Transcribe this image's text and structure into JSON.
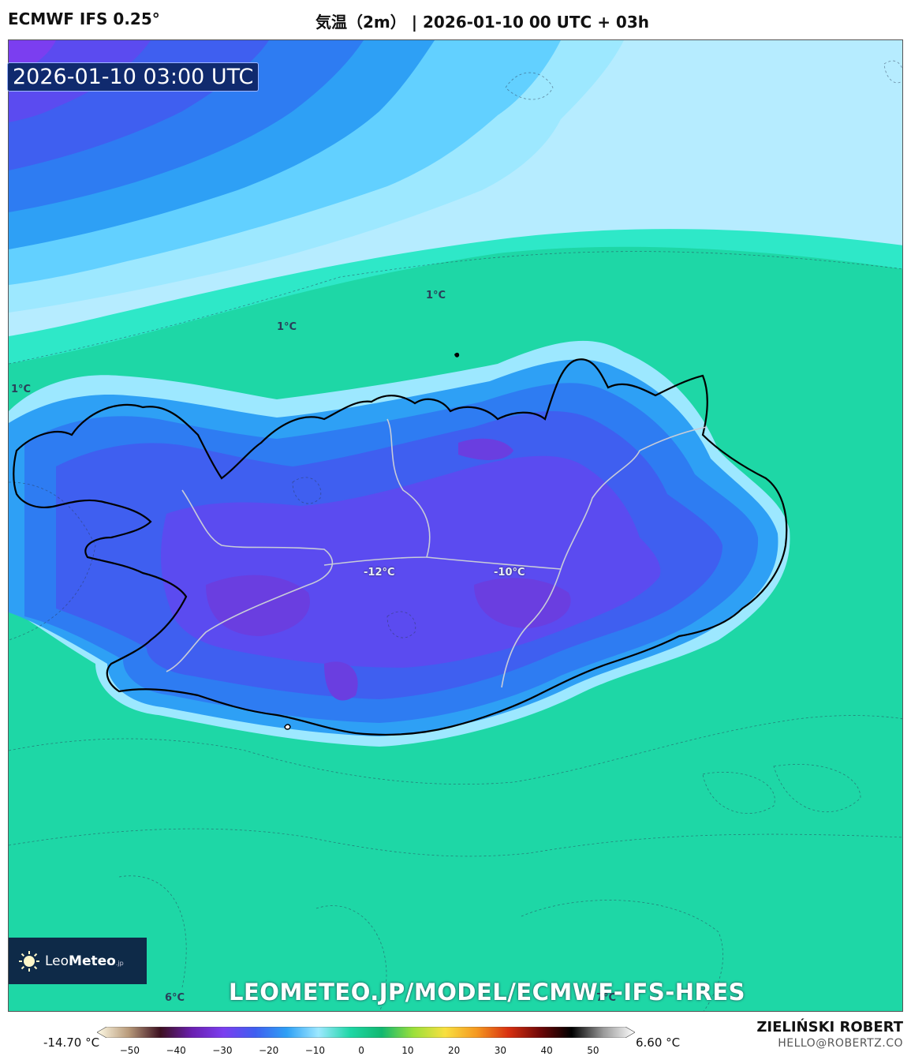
{
  "header": {
    "model": "ECMWF IFS 0.25°",
    "title": "気温（2m） | 2026-01-10 00 UTC + 03h"
  },
  "map": {
    "timestamp": "2026-01-10 03:00 UTC",
    "contour_labels": [
      "1°C",
      "1°C",
      "1°C",
      "6°C",
      "7°C"
    ],
    "region_labels": [
      "-12°C",
      "-10°C"
    ]
  },
  "logo": {
    "name_light": "Leo",
    "name_bold": "Meteo",
    "suffix": ".jp"
  },
  "watermark": "LEOMETEO.JP/MODEL/ECMWF-IFS-HRES",
  "colorbar": {
    "min_label": "-14.70 °C",
    "max_label": "6.60 °C",
    "ticks": [
      "−50",
      "−40",
      "−30",
      "−20",
      "−10",
      "0",
      "10",
      "20",
      "30",
      "40",
      "50"
    ],
    "range": [
      -55,
      57
    ],
    "colors": [
      "#fffbe6",
      "#b89a7a",
      "#3d1020",
      "#6a1fb0",
      "#7b3ef0",
      "#3f5ff0",
      "#2ea0f5",
      "#9de8ff",
      "#1ed7a6",
      "#11b870",
      "#9be03a",
      "#f8e040",
      "#f59820",
      "#d83010",
      "#700808",
      "#000000",
      "#9a9a9a",
      "#ffffff"
    ]
  },
  "credits": {
    "author": "ZIELIŃSKI ROBERT",
    "email": "HELLO@ROBERTZ.CO"
  }
}
